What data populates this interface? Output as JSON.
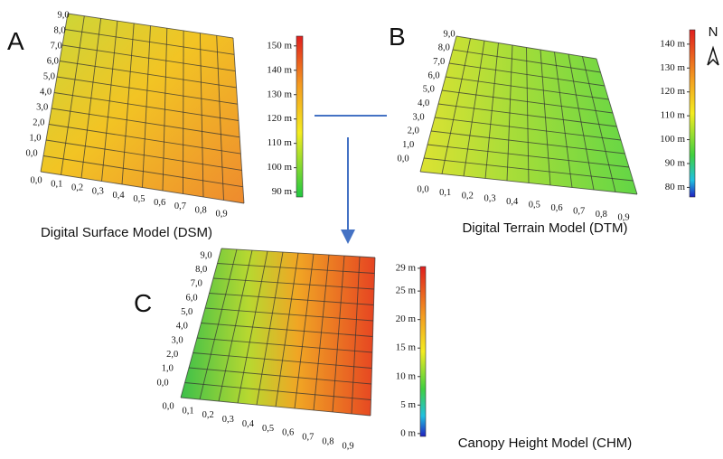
{
  "panels": [
    {
      "letter": "A",
      "caption": "Digital Surface Model (DSM)",
      "y_labels": [
        "0,0",
        "1,0",
        "2,0",
        "3,0",
        "4,0",
        "5,0",
        "6,0",
        "7,0",
        "8,0",
        "9,0"
      ],
      "x_labels": [
        "0,0",
        "0,1",
        "0,2",
        "0,3",
        "0,4",
        "0,5",
        "0,6",
        "0,7",
        "0,8",
        "0,9"
      ],
      "colorbar": {
        "lim": [
          88,
          154
        ],
        "ticks": [
          {
            "value": 90,
            "label": "90 m"
          },
          {
            "value": 100,
            "label": "100 m"
          },
          {
            "value": 110,
            "label": "110 m"
          },
          {
            "value": 120,
            "label": "120 m"
          },
          {
            "value": 130,
            "label": "130 m"
          },
          {
            "value": 140,
            "label": "140 m"
          },
          {
            "value": 150,
            "label": "150 m"
          }
        ]
      }
    },
    {
      "letter": "B",
      "caption": "Digital Terrain Model (DTM)",
      "y_labels": [
        "0,0",
        "1,0",
        "2,0",
        "3,0",
        "4,0",
        "5,0",
        "6,0",
        "7,0",
        "8,0",
        "9,0"
      ],
      "x_labels": [
        "0,0",
        "0,1",
        "0,2",
        "0,3",
        "0,4",
        "0,5",
        "0,6",
        "0,7",
        "0,8",
        "0,9"
      ],
      "colorbar": {
        "lim": [
          76,
          146
        ],
        "ticks": [
          {
            "value": 80,
            "label": "80 m"
          },
          {
            "value": 90,
            "label": "90 m"
          },
          {
            "value": 100,
            "label": "100 m"
          },
          {
            "value": 110,
            "label": "110 m"
          },
          {
            "value": 120,
            "label": "120 m"
          },
          {
            "value": 130,
            "label": "130 m"
          },
          {
            "value": 140,
            "label": "140 m"
          }
        ]
      }
    },
    {
      "letter": "C",
      "caption": "Canopy Height Model (CHM)",
      "y_labels": [
        "0,0",
        "1,0",
        "2,0",
        "3,0",
        "4,0",
        "5,0",
        "6,0",
        "7,0",
        "8,0",
        "9,0"
      ],
      "x_labels": [
        "0,0",
        "0,1",
        "0,2",
        "0,3",
        "0,4",
        "0,5",
        "0,6",
        "0,7",
        "0,8",
        "0,9"
      ],
      "colorbar": {
        "lim": [
          -0.5,
          29.3
        ],
        "ticks": [
          {
            "value": 0,
            "label": "0 m"
          },
          {
            "value": 5,
            "label": "5 m"
          },
          {
            "value": 10,
            "label": "10 m"
          },
          {
            "value": 15,
            "label": "15 m"
          },
          {
            "value": 20,
            "label": "20 m"
          },
          {
            "value": 25,
            "label": "25 m"
          },
          {
            "value": 29,
            "label": "29 m"
          }
        ]
      }
    }
  ],
  "north": "N"
}
